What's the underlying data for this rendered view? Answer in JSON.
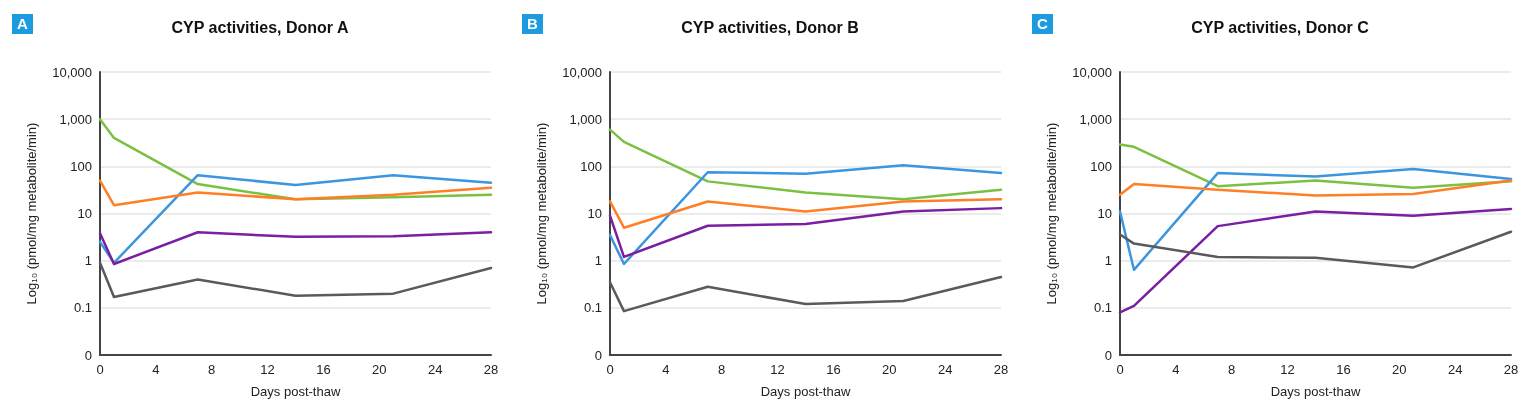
{
  "chart_data": [
    {
      "type": "line",
      "title": "CYP activities, Donor A",
      "annotations": [
        "A"
      ],
      "xlabel": "Days post-thaw",
      "ylabel": "Log₁₀ (pmol/mg metabolite/min)",
      "x": [
        0,
        1,
        7,
        14,
        21,
        28
      ],
      "log": "y",
      "grid": "y",
      "line_style": "solid",
      "xlim": [
        0,
        28
      ],
      "xticks": [
        0,
        4,
        8,
        12,
        16,
        20,
        24,
        28
      ],
      "ylim": [
        0.01,
        10000
      ],
      "yticks": [
        {
          "value": 0.01,
          "label": "0"
        },
        0.1,
        1,
        10,
        100,
        {
          "value": 1000,
          "label": "1,000"
        },
        {
          "value": 10000,
          "label": "10,000"
        }
      ],
      "series": [
        {
          "color": "#7ac143",
          "values": [
            1000,
            400,
            42,
            20,
            22,
            25
          ]
        },
        {
          "color": "#3a96e0",
          "values": [
            2.5,
            0.9,
            65,
            40,
            65,
            45
          ]
        },
        {
          "color": "#ff7f27",
          "values": [
            50,
            15,
            28,
            20,
            25,
            35
          ]
        },
        {
          "color": "#7b1fa2",
          "values": [
            3.8,
            0.85,
            4,
            3.2,
            3.3,
            4
          ]
        },
        {
          "color": "#5a5a5a",
          "values": [
            0.9,
            0.17,
            0.4,
            0.18,
            0.2,
            0.7
          ]
        }
      ]
    },
    {
      "type": "line",
      "title": "CYP activities, Donor B",
      "annotations": [
        "B"
      ],
      "xlabel": "Days post-thaw",
      "ylabel": "Log₁₀ (pmol/mg metabolite/min)",
      "x": [
        0,
        1,
        7,
        14,
        21,
        28
      ],
      "log": "y",
      "grid": "y",
      "line_style": "solid",
      "xlim": [
        0,
        28
      ],
      "xticks": [
        0,
        4,
        8,
        12,
        16,
        20,
        24,
        28
      ],
      "ylim": [
        0.01,
        10000
      ],
      "yticks": [
        {
          "value": 0.01,
          "label": "0"
        },
        0.1,
        1,
        10,
        100,
        {
          "value": 1000,
          "label": "1,000"
        },
        {
          "value": 10000,
          "label": "10,000"
        }
      ],
      "series": [
        {
          "color": "#7ac143",
          "values": [
            600,
            330,
            48,
            28,
            20,
            32
          ]
        },
        {
          "color": "#3a96e0",
          "values": [
            3.5,
            0.85,
            75,
            70,
            105,
            72
          ]
        },
        {
          "color": "#ff7f27",
          "values": [
            18,
            5,
            18,
            11,
            18,
            20
          ]
        },
        {
          "color": "#7b1fa2",
          "values": [
            9,
            1.2,
            5.5,
            6,
            11,
            13
          ]
        },
        {
          "color": "#5a5a5a",
          "values": [
            0.35,
            0.085,
            0.28,
            0.12,
            0.14,
            0.45
          ]
        }
      ]
    },
    {
      "type": "line",
      "title": "CYP activities, Donor C",
      "annotations": [
        "C"
      ],
      "xlabel": "Days post-thaw",
      "ylabel": "Log₁₀ (pmol/mg metabolite/min)",
      "x": [
        0,
        1,
        7,
        14,
        21,
        28
      ],
      "log": "y",
      "grid": "y",
      "line_style": "solid",
      "xlim": [
        0,
        28
      ],
      "xticks": [
        0,
        4,
        8,
        12,
        16,
        20,
        24,
        28
      ],
      "ylim": [
        0.01,
        10000
      ],
      "yticks": [
        {
          "value": 0.01,
          "label": "0"
        },
        0.1,
        1,
        10,
        100,
        {
          "value": 1000,
          "label": "1,000"
        },
        {
          "value": 10000,
          "label": "10,000"
        }
      ],
      "series": [
        {
          "color": "#7ac143",
          "values": [
            290,
            260,
            38,
            50,
            35,
            48
          ]
        },
        {
          "color": "#3a96e0",
          "values": [
            11,
            0.64,
            72,
            61,
            88,
            54
          ]
        },
        {
          "color": "#ff7f27",
          "values": [
            25,
            42,
            32,
            24,
            26,
            50
          ]
        },
        {
          "color": "#7b1fa2",
          "values": [
            0.08,
            0.11,
            5.4,
            11,
            9,
            12.5
          ]
        },
        {
          "color": "#5a5a5a",
          "values": [
            3.6,
            2.3,
            1.2,
            1.15,
            0.72,
            4.1
          ]
        }
      ]
    }
  ]
}
